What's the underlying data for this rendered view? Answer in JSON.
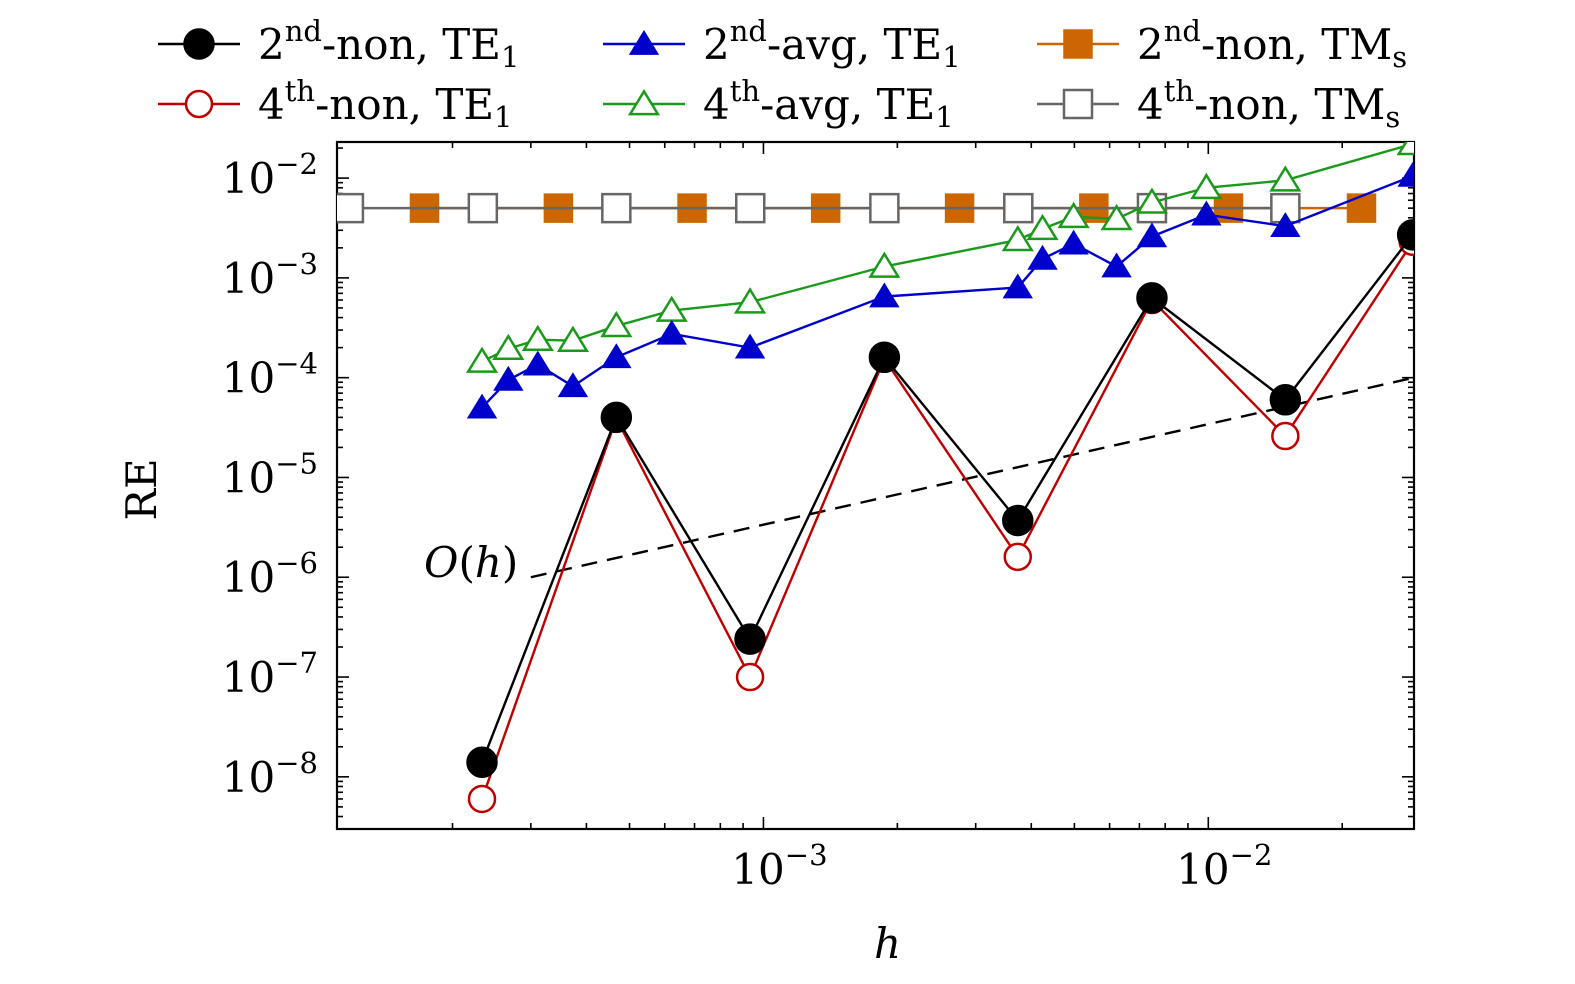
{
  "chart_data": {
    "type": "line",
    "xlabel": "h",
    "ylabel": "RE",
    "x_scale": "log",
    "y_scale": "log",
    "xlim": [
      0.00011,
      0.029
    ],
    "ylim": [
      3e-09,
      0.023
    ],
    "x_ticks": [
      {
        "value": 0.001,
        "base": "10",
        "exp": "−3"
      },
      {
        "value": 0.01,
        "base": "10",
        "exp": "−2"
      }
    ],
    "y_ticks": [
      {
        "value": 0.01,
        "base": "10",
        "exp": "−2"
      },
      {
        "value": 0.001,
        "base": "10",
        "exp": "−3"
      },
      {
        "value": 0.0001,
        "base": "10",
        "exp": "−4"
      },
      {
        "value": 1e-05,
        "base": "10",
        "exp": "−5"
      },
      {
        "value": 1e-06,
        "base": "10",
        "exp": "−6"
      },
      {
        "value": 1e-07,
        "base": "10",
        "exp": "−7"
      },
      {
        "value": 1e-08,
        "base": "10",
        "exp": "−8"
      }
    ],
    "grid": false,
    "legend_position": "top",
    "series": [
      {
        "name": "2nd-non, TE1",
        "label_parts": {
          "pre": "2",
          "sup": "nd",
          "mid": "-non, TE",
          "sub": "1"
        },
        "color": "#000000",
        "marker": "circle",
        "filled": true,
        "x": [
          0.000233,
          0.000467,
          0.000933,
          0.00187,
          0.00373,
          0.00747,
          0.0149,
          0.0288
        ],
        "y": [
          1.4e-08,
          4e-05,
          2.4e-07,
          0.00016,
          3.7e-06,
          0.00063,
          6e-05,
          0.0027
        ]
      },
      {
        "name": "4th-non, TE1",
        "label_parts": {
          "pre": "4",
          "sup": "th",
          "mid": "-non, TE",
          "sub": "1"
        },
        "color": "#c00000",
        "marker": "circle",
        "filled": false,
        "x": [
          0.000233,
          0.000467,
          0.000933,
          0.00187,
          0.00373,
          0.00747,
          0.0149,
          0.0288
        ],
        "y": [
          6e-09,
          3.9e-05,
          1e-07,
          0.000155,
          1.6e-06,
          0.0006,
          2.6e-05,
          0.0023
        ]
      },
      {
        "name": "2nd-avg, TE1",
        "label_parts": {
          "pre": "2",
          "sup": "nd",
          "mid": "-avg, TE",
          "sub": "1"
        },
        "color": "#0000cc",
        "marker": "triangle",
        "filled": true,
        "x": [
          0.000233,
          0.000267,
          0.000311,
          0.000373,
          0.000467,
          0.000622,
          0.000933,
          0.00187,
          0.00373,
          0.00424,
          0.00498,
          0.00622,
          0.00747,
          0.0099,
          0.0149,
          0.0288
        ],
        "y": [
          5e-05,
          9.5e-05,
          0.000135,
          8.2e-05,
          0.00016,
          0.000275,
          0.0002,
          0.00065,
          0.0008,
          0.00155,
          0.0022,
          0.0013,
          0.0026,
          0.0043,
          0.0033,
          0.0105
        ]
      },
      {
        "name": "4th-avg, TE1",
        "label_parts": {
          "pre": "4",
          "sup": "th",
          "mid": "-avg, TE",
          "sub": "1"
        },
        "color": "#1a9a1a",
        "marker": "triangle",
        "filled": false,
        "x": [
          0.000233,
          0.000267,
          0.000311,
          0.000373,
          0.000467,
          0.000622,
          0.000933,
          0.00187,
          0.00373,
          0.00424,
          0.00498,
          0.00622,
          0.00747,
          0.0099,
          0.0149,
          0.0288
        ],
        "y": [
          0.000145,
          0.000195,
          0.00024,
          0.000235,
          0.00033,
          0.00047,
          0.00057,
          0.0013,
          0.0024,
          0.0031,
          0.0041,
          0.0039,
          0.0057,
          0.008,
          0.0095,
          0.022
        ]
      },
      {
        "name": "2nd-non, TMs",
        "label_parts": {
          "pre": "2",
          "sup": "nd",
          "mid": "-non, TM",
          "sub": "s"
        },
        "color": "#cc6600",
        "marker": "square",
        "filled": true,
        "x": [
          0.000173,
          0.000346,
          0.000691,
          0.00138,
          0.00276,
          0.00553,
          0.0111,
          0.0221
        ],
        "y": [
          0.005,
          0.005,
          0.005,
          0.005,
          0.005,
          0.005,
          0.005,
          0.005
        ]
      },
      {
        "name": "4th-non, TMs",
        "label_parts": {
          "pre": "4",
          "sup": "th",
          "mid": "-non, TM",
          "sub": "s"
        },
        "color": "#666666",
        "marker": "square",
        "filled": false,
        "x": [
          0.000117,
          0.000234,
          0.000467,
          0.000934,
          0.00187,
          0.00374,
          0.00747,
          0.0149
        ],
        "y": [
          0.005,
          0.005,
          0.005,
          0.005,
          0.005,
          0.005,
          0.005,
          0.005
        ]
      }
    ],
    "reference_line": {
      "label": "O(h)",
      "label_parts": {
        "pre": "O(",
        "var": "h",
        "post": ")"
      },
      "x": [
        0.0003,
        0.029
      ],
      "y": [
        1e-06,
        0.0001
      ]
    }
  }
}
